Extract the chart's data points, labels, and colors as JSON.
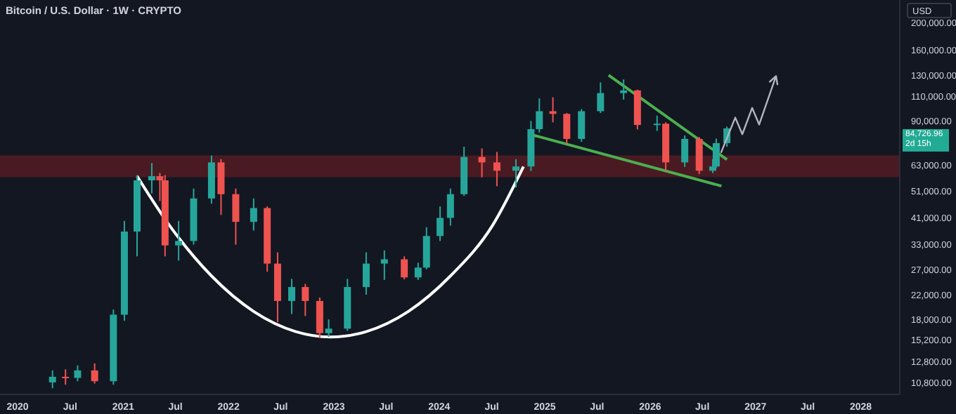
{
  "chart_data": {
    "type": "candlestick",
    "title": "Bitcoin / U.S. Dollar · 1W · CRYPTO",
    "ylabel": "USD",
    "log": true,
    "x": [
      "2020-05-01",
      "2020-06-15",
      "2020-07-27",
      "2020-09-24",
      "2020-11-28",
      "2021-01-05",
      "2021-02-18",
      "2021-04-10",
      "2021-05-08",
      "2021-05-26",
      "2021-07-12",
      "2021-09-02",
      "2021-11-03",
      "2021-12-06",
      "2022-01-26",
      "2022-03-29",
      "2022-05-15",
      "2022-06-20",
      "2022-08-08",
      "2022-09-24",
      "2022-11-13",
      "2022-12-14",
      "2023-02-17",
      "2023-04-23",
      "2023-06-25",
      "2023-09-02",
      "2023-10-20",
      "2023-11-18",
      "2024-01-04",
      "2024-02-09",
      "2024-03-27",
      "2024-05-28",
      "2024-07-19",
      "2024-09-23",
      "2024-11-14",
      "2024-12-13",
      "2025-01-29",
      "2025-03-18",
      "2025-05-08",
      "2025-07-13",
      "2025-10-01",
      "2025-11-18",
      "2026-01-25",
      "2026-02-24",
      "2026-05-01",
      "2026-06-20",
      "2026-08-06",
      "2026-08-18",
      "2026-09-24"
    ],
    "ohlc": [
      [
        10800,
        11900,
        10300,
        11300
      ],
      [
        11300,
        12000,
        10600,
        11200
      ],
      [
        11200,
        12400,
        10900,
        11900
      ],
      [
        11900,
        12600,
        10700,
        10900
      ],
      [
        10900,
        19500,
        10600,
        18700
      ],
      [
        18700,
        40000,
        17800,
        36700
      ],
      [
        36700,
        58000,
        30000,
        55600
      ],
      [
        55600,
        64000,
        50000,
        57500
      ],
      [
        57500,
        59000,
        47000,
        55600
      ],
      [
        55600,
        58000,
        30000,
        32800
      ],
      [
        32800,
        40000,
        29000,
        34000
      ],
      [
        34000,
        52000,
        33000,
        48000
      ],
      [
        48000,
        68000,
        46000,
        64300
      ],
      [
        64300,
        66000,
        42000,
        49700
      ],
      [
        49700,
        52000,
        33000,
        39700
      ],
      [
        39700,
        48000,
        37000,
        44400
      ],
      [
        44400,
        45000,
        26500,
        28300
      ],
      [
        28300,
        31000,
        17600,
        20900
      ],
      [
        20900,
        25000,
        18800,
        23400
      ],
      [
        23400,
        24000,
        18500,
        20900
      ],
      [
        20900,
        21500,
        15500,
        16100
      ],
      [
        16100,
        18000,
        15600,
        16700
      ],
      [
        16700,
        25000,
        16400,
        23400
      ],
      [
        23400,
        31000,
        22000,
        28300
      ],
      [
        28300,
        31500,
        24800,
        29300
      ],
      [
        29300,
        30000,
        24900,
        25300
      ],
      [
        25300,
        28500,
        24800,
        27400
      ],
      [
        27400,
        38000,
        27000,
        35400
      ],
      [
        35400,
        45000,
        34000,
        41000
      ],
      [
        41000,
        52000,
        38500,
        49700
      ],
      [
        49700,
        73000,
        49000,
        67200
      ],
      [
        67200,
        72000,
        57000,
        64300
      ],
      [
        64300,
        70000,
        53000,
        60100
      ],
      [
        60100,
        66000,
        52500,
        62200
      ],
      [
        62200,
        90000,
        60000,
        84200
      ],
      [
        84200,
        108000,
        82000,
        97400
      ],
      [
        97400,
        109000,
        89000,
        95300
      ],
      [
        95300,
        96000,
        74500,
        77800
      ],
      [
        77800,
        99000,
        76000,
        97400
      ],
      [
        97400,
        123000,
        96000,
        112800
      ],
      [
        112800,
        126000,
        107000,
        115300
      ],
      [
        115300,
        116000,
        84000,
        87100
      ],
      [
        87100,
        94000,
        83000,
        88000
      ],
      [
        88000,
        89000,
        60000,
        64300
      ],
      [
        64300,
        80000,
        62000,
        77800
      ],
      [
        77800,
        79000,
        58500,
        60100
      ],
      [
        60100,
        66000,
        59000,
        62200
      ],
      [
        62200,
        78000,
        61500,
        75200
      ],
      [
        75200,
        86000,
        73000,
        84726.96
      ]
    ],
    "colors": [
      "#26a69a",
      "#ef5350",
      "#26a69a",
      "#ef5350",
      "#26a69a",
      "#26a69a",
      "#26a69a",
      "#26a69a",
      "#ef5350",
      "#ef5350",
      "#26a69a",
      "#26a69a",
      "#26a69a",
      "#ef5350",
      "#ef5350",
      "#26a69a",
      "#ef5350",
      "#ef5350",
      "#26a69a",
      "#ef5350",
      "#ef5350",
      "#26a69a",
      "#26a69a",
      "#26a69a",
      "#26a69a",
      "#ef5350",
      "#26a69a",
      "#26a69a",
      "#26a69a",
      "#26a69a",
      "#26a69a",
      "#ef5350",
      "#ef5350",
      "#26a69a",
      "#26a69a",
      "#26a69a",
      "#ef5350",
      "#ef5350",
      "#26a69a",
      "#26a69a",
      "#26a69a",
      "#ef5350",
      "#26a69a",
      "#ef5350",
      "#26a69a",
      "#ef5350",
      "#26a69a",
      "#26a69a",
      "#26a69a"
    ],
    "series": [
      {
        "type": "line",
        "color": "#ffffff",
        "x": [
          "2021-02-18",
          "2021-06-10",
          "2021-11-03",
          "2022-03-29",
          "2022-08-22",
          "2022-12-22",
          "2023-04-23",
          "2023-09-16",
          "2024-02-09",
          "2024-07-04",
          "2024-10-19"
        ],
        "values": [
          57500,
          38600,
          25600,
          19200,
          16300,
          15600,
          16300,
          19200,
          25600,
          38600,
          62200
        ]
      },
      {
        "type": "line",
        "color": "#4caf50",
        "x": [
          "2025-08-10",
          "2026-09-24"
        ],
        "values": [
          130500,
          65800
        ]
      },
      {
        "type": "line",
        "color": "#4caf50",
        "x": [
          "2024-11-16",
          "2026-09-05"
        ],
        "values": [
          80500,
          53100
        ]
      }
    ],
    "bands": [
      {
        "axis": "y",
        "from": 57000,
        "to": 68000,
        "color": "#4a1a22"
      }
    ],
    "annotations": [
      "84,726.96",
      "2d 15h"
    ],
    "xlim": [
      "2019-11-01",
      "2028-05-15"
    ],
    "xticks": [
      {
        "value": "2020-01-01",
        "label": "2020"
      },
      {
        "value": "2020-07-01",
        "label": "Jul"
      },
      {
        "value": "2021-01-01",
        "label": "2021"
      },
      {
        "value": "2021-07-01",
        "label": "Jul"
      },
      {
        "value": "2022-01-01",
        "label": "2022"
      },
      {
        "value": "2022-07-01",
        "label": "Jul"
      },
      {
        "value": "2023-01-01",
        "label": "2023"
      },
      {
        "value": "2023-07-01",
        "label": "Jul"
      },
      {
        "value": "2024-01-01",
        "label": "2024"
      },
      {
        "value": "2024-07-01",
        "label": "Jul"
      },
      {
        "value": "2025-01-01",
        "label": "2025"
      },
      {
        "value": "2025-07-01",
        "label": "Jul"
      },
      {
        "value": "2026-01-01",
        "label": "2026"
      },
      {
        "value": "2026-07-01",
        "label": "Jul"
      },
      {
        "value": "2027-01-01",
        "label": "2027"
      },
      {
        "value": "2027-07-01",
        "label": "Jul"
      },
      {
        "value": "2028-01-01",
        "label": "2028"
      }
    ],
    "ylim": [
      9800,
      240000
    ],
    "yticks": [
      {
        "value": 10800,
        "label": "10,800.00"
      },
      {
        "value": 12800,
        "label": "12,800.00"
      },
      {
        "value": 15200,
        "label": "15,200.00"
      },
      {
        "value": 18000,
        "label": "18,000.00"
      },
      {
        "value": 22000,
        "label": "22,000.00"
      },
      {
        "value": 27000,
        "label": "27,000.00"
      },
      {
        "value": 33000,
        "label": "33,000.00"
      },
      {
        "value": 41000,
        "label": "41,000.00"
      },
      {
        "value": 51000,
        "label": "51,000.00"
      },
      {
        "value": 63000,
        "label": "63,000.00"
      },
      {
        "value": 90000,
        "label": "90,000.00"
      },
      {
        "value": 110000,
        "label": "110,000.00"
      },
      {
        "value": 130000,
        "label": "130,000.00"
      },
      {
        "value": 160000,
        "label": "160,000.00"
      },
      {
        "value": 200000,
        "label": "200,000.00"
      }
    ]
  }
}
